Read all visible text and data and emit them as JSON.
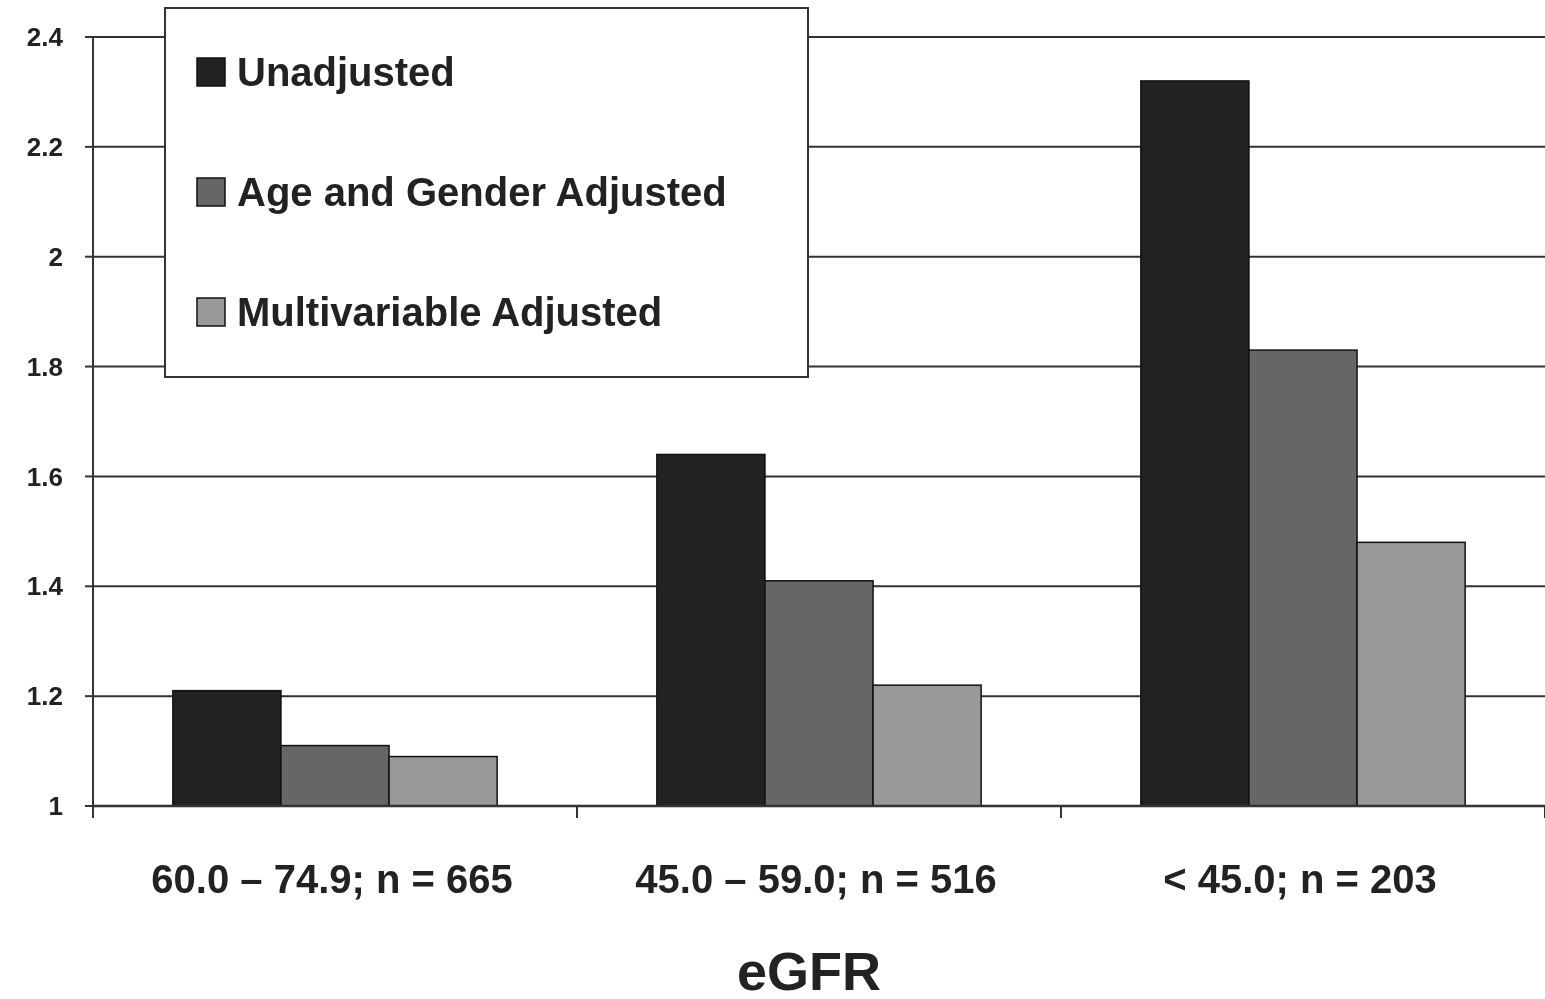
{
  "chart_data": {
    "type": "bar",
    "xlabel": "eGFR",
    "categories": [
      "60.0 – 74.9; n = 665",
      "45.0 – 59.0; n = 516",
      "< 45.0; n = 203"
    ],
    "series": [
      {
        "name": "Unadjusted",
        "color": "#222222",
        "values": [
          1.21,
          1.64,
          2.32
        ]
      },
      {
        "name": "Age and Gender Adjusted",
        "color": "#666666",
        "values": [
          1.11,
          1.41,
          1.83
        ]
      },
      {
        "name": "Multivariable Adjusted",
        "color": "#999999",
        "values": [
          1.09,
          1.22,
          1.48
        ]
      }
    ],
    "ylim": [
      1,
      2.4
    ],
    "yticks": [
      1,
      1.2,
      1.4,
      1.6,
      1.8,
      2,
      2.2,
      2.4
    ],
    "grid": "y",
    "legend": "top left"
  }
}
